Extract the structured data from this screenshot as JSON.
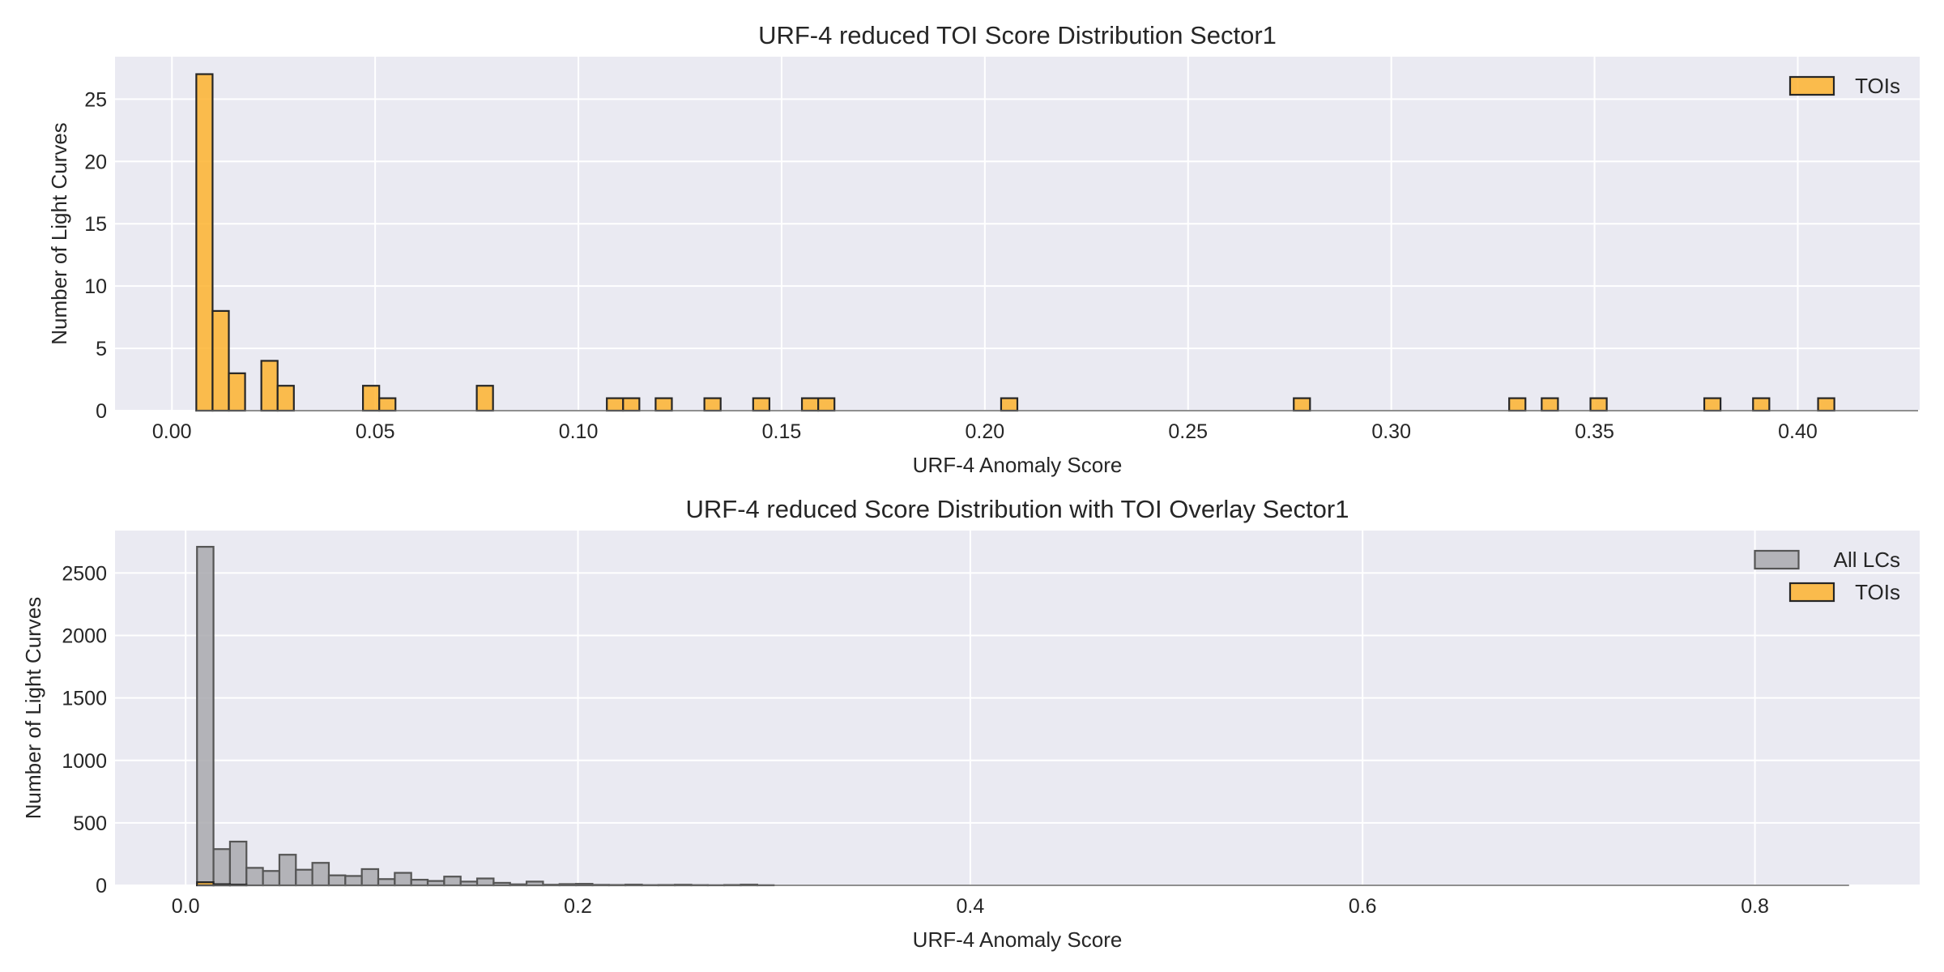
{
  "chart_data": [
    {
      "type": "bar",
      "title": "URF-4 reduced TOI Score Distribution Sector1",
      "xlabel": "URF-4 Anomaly Score",
      "ylabel": "Number of Light Curves",
      "xlim": [
        -0.014,
        0.43
      ],
      "ylim": [
        0,
        28.4
      ],
      "xticks": [
        0.0,
        0.05,
        0.1,
        0.15,
        0.2,
        0.25,
        0.3,
        0.35,
        0.4
      ],
      "xtick_labels": [
        "0.00",
        "0.05",
        "0.10",
        "0.15",
        "0.20",
        "0.25",
        "0.30",
        "0.35",
        "0.40"
      ],
      "yticks": [
        0,
        5,
        10,
        15,
        20,
        25
      ],
      "grid": true,
      "legend_position": "top-right",
      "bin_width": 0.004,
      "series": [
        {
          "name": "TOIs",
          "color": "#fdb32f",
          "bins": [
            {
              "x": 0.006,
              "value": 27
            },
            {
              "x": 0.01,
              "value": 8
            },
            {
              "x": 0.014,
              "value": 3
            },
            {
              "x": 0.022,
              "value": 4
            },
            {
              "x": 0.026,
              "value": 2
            },
            {
              "x": 0.047,
              "value": 2
            },
            {
              "x": 0.051,
              "value": 1
            },
            {
              "x": 0.075,
              "value": 2
            },
            {
              "x": 0.107,
              "value": 1
            },
            {
              "x": 0.111,
              "value": 1
            },
            {
              "x": 0.119,
              "value": 1
            },
            {
              "x": 0.131,
              "value": 1
            },
            {
              "x": 0.143,
              "value": 1
            },
            {
              "x": 0.155,
              "value": 1
            },
            {
              "x": 0.159,
              "value": 1
            },
            {
              "x": 0.204,
              "value": 1
            },
            {
              "x": 0.276,
              "value": 1
            },
            {
              "x": 0.329,
              "value": 1
            },
            {
              "x": 0.337,
              "value": 1
            },
            {
              "x": 0.349,
              "value": 1
            },
            {
              "x": 0.377,
              "value": 1
            },
            {
              "x": 0.389,
              "value": 1
            },
            {
              "x": 0.405,
              "value": 1
            }
          ]
        }
      ]
    },
    {
      "type": "bar",
      "title": "URF-4 reduced Score Distribution with TOI Overlay Sector1",
      "xlabel": "URF-4 Anomaly Score",
      "ylabel": "Number of Light Curves",
      "xlim": [
        -0.036,
        0.884
      ],
      "ylim": [
        0,
        2840
      ],
      "xticks": [
        0.0,
        0.2,
        0.4,
        0.6,
        0.8
      ],
      "xtick_labels": [
        "0.0",
        "0.2",
        "0.4",
        "0.6",
        "0.8"
      ],
      "yticks": [
        0,
        500,
        1000,
        1500,
        2000,
        2500
      ],
      "grid": true,
      "legend_position": "top-right",
      "bin_width": 0.0084,
      "series": [
        {
          "name": "All LCs",
          "color": "#a9a9ae",
          "bins": [
            {
              "x": 0.0058,
              "value": 2710
            },
            {
              "x": 0.0142,
              "value": 290
            },
            {
              "x": 0.0226,
              "value": 350
            },
            {
              "x": 0.031,
              "value": 140
            },
            {
              "x": 0.0394,
              "value": 115
            },
            {
              "x": 0.0478,
              "value": 245
            },
            {
              "x": 0.0562,
              "value": 125
            },
            {
              "x": 0.0646,
              "value": 180
            },
            {
              "x": 0.073,
              "value": 80
            },
            {
              "x": 0.0814,
              "value": 75
            },
            {
              "x": 0.0898,
              "value": 130
            },
            {
              "x": 0.0982,
              "value": 50
            },
            {
              "x": 0.1066,
              "value": 100
            },
            {
              "x": 0.115,
              "value": 45
            },
            {
              "x": 0.1234,
              "value": 35
            },
            {
              "x": 0.1318,
              "value": 70
            },
            {
              "x": 0.1402,
              "value": 30
            },
            {
              "x": 0.1486,
              "value": 55
            },
            {
              "x": 0.157,
              "value": 20
            },
            {
              "x": 0.1654,
              "value": 8
            },
            {
              "x": 0.1738,
              "value": 30
            },
            {
              "x": 0.1822,
              "value": 5
            },
            {
              "x": 0.1906,
              "value": 10
            },
            {
              "x": 0.199,
              "value": 12
            },
            {
              "x": 0.2074,
              "value": 4
            },
            {
              "x": 0.2158,
              "value": 3
            },
            {
              "x": 0.2242,
              "value": 6
            },
            {
              "x": 0.2326,
              "value": 2
            },
            {
              "x": 0.241,
              "value": 3
            },
            {
              "x": 0.2494,
              "value": 5
            },
            {
              "x": 0.2578,
              "value": 2
            },
            {
              "x": 0.2662,
              "value": 1
            },
            {
              "x": 0.2746,
              "value": 3
            },
            {
              "x": 0.283,
              "value": 6
            },
            {
              "x": 0.2914,
              "value": 1
            }
          ]
        },
        {
          "name": "TOIs",
          "color": "#fdb32f",
          "bins": [
            {
              "x": 0.0058,
              "value": 25
            },
            {
              "x": 0.0142,
              "value": 9
            },
            {
              "x": 0.0226,
              "value": 6
            }
          ]
        }
      ]
    }
  ]
}
